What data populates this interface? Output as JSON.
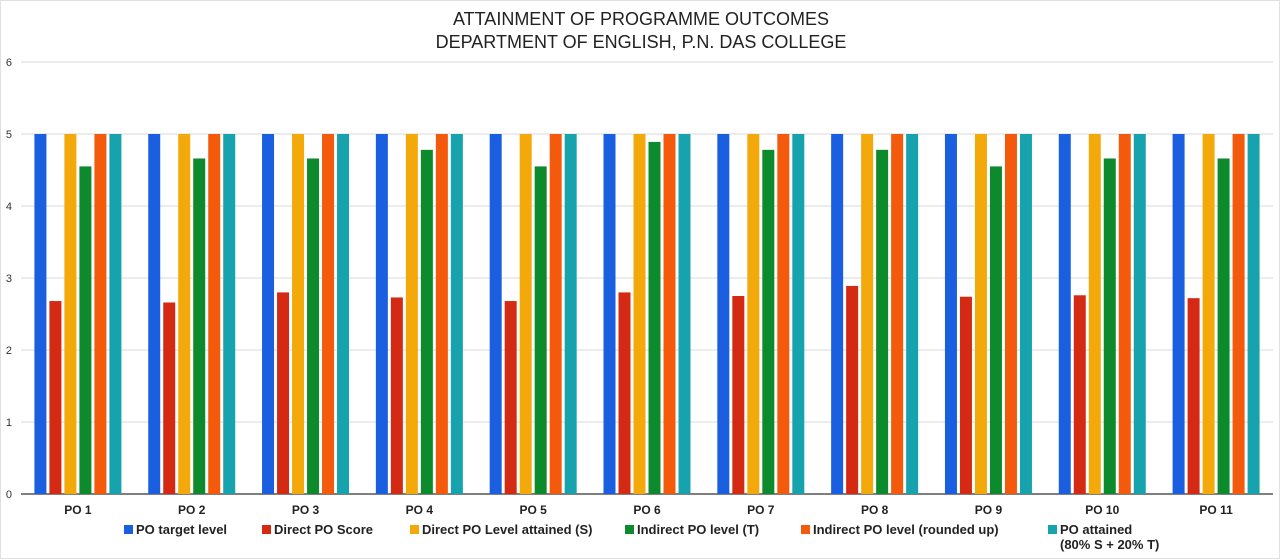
{
  "chart_data": {
    "type": "bar",
    "title_lines": [
      "ATTAINMENT OF PROGRAMME OUTCOMES",
      "DEPARTMENT OF ENGLISH, P.N. DAS COLLEGE"
    ],
    "xlabel": "",
    "ylabel": "",
    "ylim": [
      0,
      6
    ],
    "yticks": [
      "0",
      "1",
      "2",
      "3",
      "4",
      "5",
      "6"
    ],
    "grid": true,
    "legend_position": "bottom",
    "categories": [
      "PO 1",
      "PO 2",
      "PO 3",
      "PO 4",
      "PO 5",
      "PO 6",
      "PO 7",
      "PO 8",
      "PO 9",
      "PO 10",
      "PO 11"
    ],
    "series": [
      {
        "name": "PO target level",
        "color": "#1a5fe0",
        "values": [
          5,
          5,
          5,
          5,
          5,
          5,
          5,
          5,
          5,
          5,
          5
        ]
      },
      {
        "name": "Direct PO Score",
        "color": "#d42a14",
        "values": [
          2.68,
          2.66,
          2.8,
          2.73,
          2.68,
          2.8,
          2.75,
          2.89,
          2.74,
          2.76,
          2.72
        ]
      },
      {
        "name": "Direct PO Level attained (S)",
        "color": "#f4a90b",
        "values": [
          5,
          5,
          5,
          5,
          5,
          5,
          5,
          5,
          5,
          5,
          5
        ]
      },
      {
        "name": "Indirect PO level (T)",
        "color": "#0d8a2b",
        "values": [
          4.55,
          4.66,
          4.66,
          4.78,
          4.55,
          4.89,
          4.78,
          4.78,
          4.55,
          4.66,
          4.66
        ]
      },
      {
        "name": "Indirect PO level (rounded up)",
        "color": "#f45a0b",
        "values": [
          5,
          5,
          5,
          5,
          5,
          5,
          5,
          5,
          5,
          5,
          5
        ]
      },
      {
        "name_lines": [
          "PO attained",
          "(80% S + 20% T)"
        ],
        "color": "#17a3ad",
        "values": [
          5,
          5,
          5,
          5,
          5,
          5,
          5,
          5,
          5,
          5,
          5
        ]
      }
    ]
  }
}
